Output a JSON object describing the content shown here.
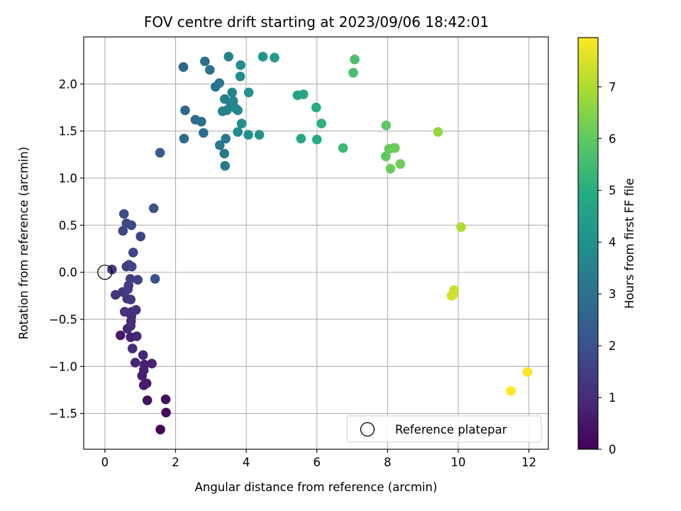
{
  "chart_data": {
    "type": "scatter",
    "title": "FOV centre drift starting at 2023/09/06 18:42:01",
    "xlabel": "Angular distance from reference (arcmin)",
    "ylabel": "Rotation from reference (arcmin)",
    "xlim": [
      -0.6,
      12.55
    ],
    "ylim": [
      -1.88,
      2.5
    ],
    "xticks": [
      "0",
      "2",
      "4",
      "6",
      "8",
      "10",
      "12"
    ],
    "yticks": [
      "−1.5",
      "−1.0",
      "−0.5",
      "0.0",
      "0.5",
      "1.0",
      "1.5",
      "2.0"
    ],
    "grid": true,
    "legend": {
      "placement": "lower-right",
      "entries": [
        "Reference platepar"
      ]
    },
    "reference_point": {
      "x": 0,
      "y": 0
    },
    "colorbar": {
      "label": "Hours from first FF file",
      "range": [
        0,
        7.95
      ],
      "ticks": [
        "0",
        "1",
        "2",
        "3",
        "4",
        "5",
        "6",
        "7"
      ],
      "colormap": "viridis"
    },
    "points": [
      {
        "x": 1.57,
        "y": -1.67,
        "c": 0.0
      },
      {
        "x": 1.73,
        "y": -1.49,
        "c": 0.2
      },
      {
        "x": 1.72,
        "y": -1.35,
        "c": 0.3
      },
      {
        "x": 1.2,
        "y": -1.36,
        "c": 0.4
      },
      {
        "x": 1.1,
        "y": -1.2,
        "c": 0.55
      },
      {
        "x": 1.18,
        "y": -1.18,
        "c": 0.6
      },
      {
        "x": 1.05,
        "y": -1.1,
        "c": 0.65
      },
      {
        "x": 1.1,
        "y": -1.04,
        "c": 0.7
      },
      {
        "x": 1.12,
        "y": -0.98,
        "c": 0.75
      },
      {
        "x": 1.33,
        "y": -0.97,
        "c": 0.8
      },
      {
        "x": 0.86,
        "y": -0.96,
        "c": 0.85
      },
      {
        "x": 1.08,
        "y": -0.88,
        "c": 0.9
      },
      {
        "x": 0.78,
        "y": -0.81,
        "c": 0.95
      },
      {
        "x": 0.44,
        "y": -0.67,
        "c": 0.6
      },
      {
        "x": 0.73,
        "y": -0.69,
        "c": 0.7
      },
      {
        "x": 0.9,
        "y": -0.68,
        "c": 0.85
      },
      {
        "x": 0.64,
        "y": -0.6,
        "c": 0.9
      },
      {
        "x": 0.73,
        "y": -0.57,
        "c": 0.95
      },
      {
        "x": 0.74,
        "y": -0.52,
        "c": 1.0
      },
      {
        "x": 0.75,
        "y": -0.47,
        "c": 1.05
      },
      {
        "x": 0.56,
        "y": -0.42,
        "c": 1.1
      },
      {
        "x": 0.76,
        "y": -0.42,
        "c": 1.1
      },
      {
        "x": 0.88,
        "y": -0.4,
        "c": 1.15
      },
      {
        "x": 0.3,
        "y": -0.24,
        "c": 1.2
      },
      {
        "x": 0.63,
        "y": -0.28,
        "c": 1.25
      },
      {
        "x": 0.73,
        "y": -0.29,
        "c": 1.3
      },
      {
        "x": 0.5,
        "y": -0.21,
        "c": 1.35
      },
      {
        "x": 0.65,
        "y": -0.18,
        "c": 1.4
      },
      {
        "x": 0.67,
        "y": -0.14,
        "c": 1.45
      },
      {
        "x": 0.72,
        "y": -0.07,
        "c": 1.5
      },
      {
        "x": 0.93,
        "y": -0.08,
        "c": 1.55
      },
      {
        "x": 0.2,
        "y": 0.03,
        "c": 1.35
      },
      {
        "x": 0.61,
        "y": 0.06,
        "c": 1.55
      },
      {
        "x": 0.68,
        "y": 0.08,
        "c": 1.6
      },
      {
        "x": 0.76,
        "y": 0.06,
        "c": 1.6
      },
      {
        "x": 0.8,
        "y": 0.21,
        "c": 1.65
      },
      {
        "x": 1.01,
        "y": 0.38,
        "c": 1.7
      },
      {
        "x": 0.51,
        "y": 0.44,
        "c": 1.75
      },
      {
        "x": 0.61,
        "y": 0.52,
        "c": 1.8
      },
      {
        "x": 0.75,
        "y": 0.5,
        "c": 1.85
      },
      {
        "x": 0.54,
        "y": 0.62,
        "c": 1.9
      },
      {
        "x": 1.38,
        "y": 0.68,
        "c": 2.05
      },
      {
        "x": 1.42,
        "y": -0.07,
        "c": 2.1
      },
      {
        "x": 1.56,
        "y": 1.27,
        "c": 2.25
      },
      {
        "x": 2.22,
        "y": 2.18,
        "c": 2.65
      },
      {
        "x": 2.27,
        "y": 1.72,
        "c": 2.7
      },
      {
        "x": 2.24,
        "y": 1.42,
        "c": 2.75
      },
      {
        "x": 2.56,
        "y": 1.62,
        "c": 2.8
      },
      {
        "x": 2.73,
        "y": 1.6,
        "c": 2.85
      },
      {
        "x": 2.79,
        "y": 1.48,
        "c": 2.9
      },
      {
        "x": 2.83,
        "y": 2.24,
        "c": 2.95
      },
      {
        "x": 2.97,
        "y": 2.15,
        "c": 3.0
      },
      {
        "x": 3.13,
        "y": 1.97,
        "c": 3.05
      },
      {
        "x": 3.24,
        "y": 2.01,
        "c": 3.1
      },
      {
        "x": 3.25,
        "y": 1.35,
        "c": 3.15
      },
      {
        "x": 3.38,
        "y": 1.26,
        "c": 3.2
      },
      {
        "x": 3.4,
        "y": 1.13,
        "c": 3.25
      },
      {
        "x": 3.42,
        "y": 1.42,
        "c": 3.3
      },
      {
        "x": 3.33,
        "y": 1.71,
        "c": 3.35
      },
      {
        "x": 3.39,
        "y": 1.84,
        "c": 3.4
      },
      {
        "x": 3.45,
        "y": 1.72,
        "c": 3.45
      },
      {
        "x": 3.5,
        "y": 2.29,
        "c": 3.5
      },
      {
        "x": 3.56,
        "y": 1.77,
        "c": 3.55
      },
      {
        "x": 3.6,
        "y": 1.91,
        "c": 3.6
      },
      {
        "x": 3.63,
        "y": 1.82,
        "c": 3.65
      },
      {
        "x": 3.7,
        "y": 1.74,
        "c": 3.7
      },
      {
        "x": 3.76,
        "y": 1.72,
        "c": 3.75
      },
      {
        "x": 3.76,
        "y": 1.49,
        "c": 3.8
      },
      {
        "x": 3.83,
        "y": 2.08,
        "c": 3.85
      },
      {
        "x": 3.84,
        "y": 2.2,
        "c": 3.9
      },
      {
        "x": 3.87,
        "y": 1.58,
        "c": 3.95
      },
      {
        "x": 4.06,
        "y": 1.46,
        "c": 4.0
      },
      {
        "x": 4.07,
        "y": 1.91,
        "c": 4.05
      },
      {
        "x": 4.37,
        "y": 1.46,
        "c": 4.1
      },
      {
        "x": 4.47,
        "y": 2.29,
        "c": 4.2
      },
      {
        "x": 4.8,
        "y": 2.28,
        "c": 4.35
      },
      {
        "x": 5.45,
        "y": 1.88,
        "c": 4.6
      },
      {
        "x": 5.55,
        "y": 1.42,
        "c": 4.7
      },
      {
        "x": 5.62,
        "y": 1.89,
        "c": 4.75
      },
      {
        "x": 5.98,
        "y": 1.75,
        "c": 4.85
      },
      {
        "x": 6.0,
        "y": 1.41,
        "c": 4.9
      },
      {
        "x": 6.13,
        "y": 1.58,
        "c": 5.1
      },
      {
        "x": 6.74,
        "y": 1.32,
        "c": 5.4
      },
      {
        "x": 7.03,
        "y": 2.12,
        "c": 5.6
      },
      {
        "x": 7.07,
        "y": 2.26,
        "c": 5.65
      },
      {
        "x": 7.96,
        "y": 1.56,
        "c": 5.95
      },
      {
        "x": 7.95,
        "y": 1.23,
        "c": 6.0
      },
      {
        "x": 8.04,
        "y": 1.31,
        "c": 6.05
      },
      {
        "x": 8.17,
        "y": 1.32,
        "c": 6.1
      },
      {
        "x": 8.21,
        "y": 1.32,
        "c": 6.15
      },
      {
        "x": 8.08,
        "y": 1.1,
        "c": 6.15
      },
      {
        "x": 8.36,
        "y": 1.15,
        "c": 6.2
      },
      {
        "x": 9.43,
        "y": 1.49,
        "c": 6.7
      },
      {
        "x": 10.08,
        "y": 0.48,
        "c": 7.0
      },
      {
        "x": 9.88,
        "y": -0.19,
        "c": 7.3
      },
      {
        "x": 9.81,
        "y": -0.25,
        "c": 7.4
      },
      {
        "x": 9.85,
        "y": -0.24,
        "c": 7.45
      },
      {
        "x": 11.96,
        "y": -1.06,
        "c": 7.9
      },
      {
        "x": 11.49,
        "y": -1.26,
        "c": 7.95
      }
    ]
  }
}
